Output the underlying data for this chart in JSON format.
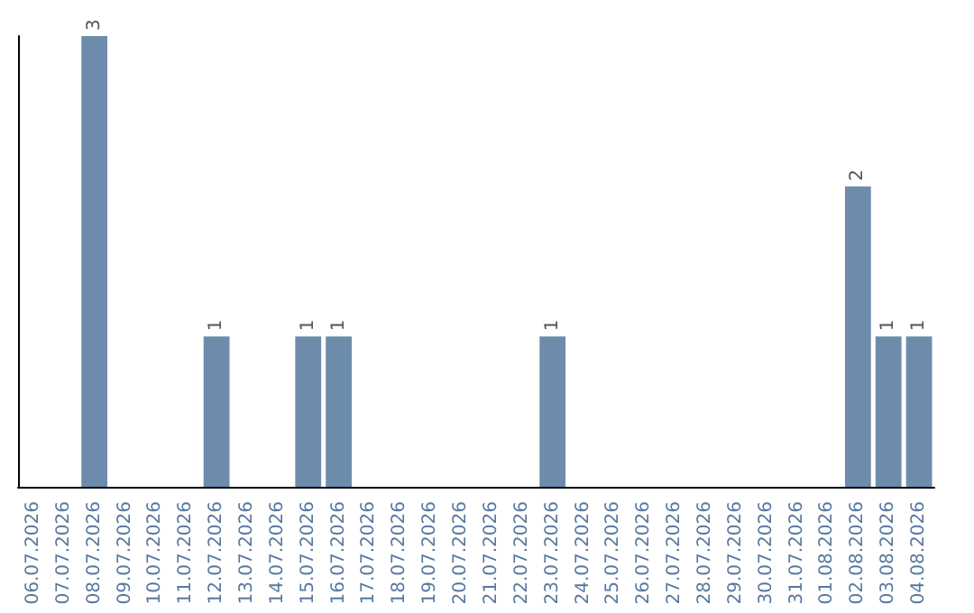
{
  "chart_data": {
    "type": "bar",
    "categories": [
      "06.07.2026",
      "07.07.2026",
      "08.07.2026",
      "09.07.2026",
      "10.07.2026",
      "11.07.2026",
      "12.07.2026",
      "13.07.2026",
      "14.07.2026",
      "15.07.2026",
      "16.07.2026",
      "17.07.2026",
      "18.07.2026",
      "19.07.2026",
      "20.07.2026",
      "21.07.2026",
      "22.07.2026",
      "23.07.2026",
      "24.07.2026",
      "25.07.2026",
      "26.07.2026",
      "27.07.2026",
      "28.07.2026",
      "29.07.2026",
      "30.07.2026",
      "31.07.2026",
      "01.08.2026",
      "02.08.2026",
      "03.08.2026",
      "04.08.2026"
    ],
    "values": [
      0,
      0,
      3,
      0,
      0,
      0,
      1,
      0,
      0,
      1,
      1,
      0,
      0,
      0,
      0,
      0,
      0,
      1,
      0,
      0,
      0,
      0,
      0,
      0,
      0,
      0,
      0,
      2,
      1,
      1
    ],
    "value_labels": [
      null,
      null,
      "3",
      null,
      null,
      null,
      "1",
      null,
      null,
      "1",
      "1",
      null,
      null,
      null,
      null,
      null,
      null,
      "1",
      null,
      null,
      null,
      null,
      null,
      null,
      null,
      null,
      null,
      "2",
      "1",
      "1"
    ],
    "color": "#6d8cac",
    "tick_labels": "x",
    "grid": false
  }
}
